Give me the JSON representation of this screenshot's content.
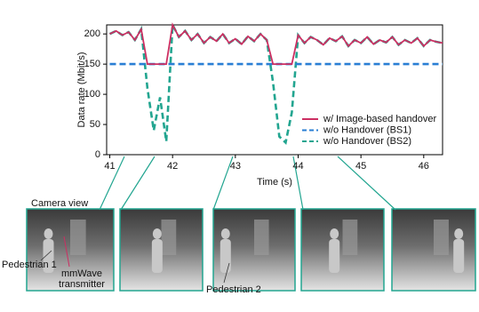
{
  "chart_data": {
    "type": "line",
    "x": [
      41.0,
      41.1,
      41.2,
      41.3,
      41.4,
      41.5,
      41.6,
      41.7,
      41.8,
      41.9,
      42.0,
      42.1,
      42.2,
      42.3,
      42.4,
      42.5,
      42.6,
      42.7,
      42.8,
      42.9,
      43.0,
      43.1,
      43.2,
      43.3,
      43.4,
      43.5,
      43.6,
      43.7,
      43.8,
      43.9,
      44.0,
      44.1,
      44.2,
      44.3,
      44.4,
      44.5,
      44.6,
      44.7,
      44.8,
      44.9,
      45.0,
      45.1,
      45.2,
      45.3,
      45.4,
      45.5,
      45.6,
      45.7,
      45.8,
      45.9,
      46.0,
      46.1,
      46.2,
      46.3
    ],
    "series": [
      {
        "name": "w/o Handover (BS2)",
        "color": "#22a590",
        "dashed": true,
        "values": [
          200,
          205,
          198,
          203,
          190,
          208,
          110,
          40,
          95,
          22,
          215,
          195,
          205,
          190,
          200,
          185,
          195,
          188,
          200,
          185,
          192,
          183,
          196,
          188,
          200,
          190,
          120,
          30,
          20,
          70,
          198,
          185,
          195,
          190,
          182,
          193,
          188,
          196,
          180,
          190,
          185,
          195,
          183,
          190,
          186,
          195,
          182,
          190,
          185,
          193,
          180,
          190,
          187,
          185
        ]
      },
      {
        "name": "w/o Handover (BS1)",
        "color": "#2a7fd4",
        "dashed": true,
        "values": [
          150,
          150,
          150,
          150,
          150,
          150,
          150,
          150,
          150,
          150,
          150,
          150,
          150,
          150,
          150,
          150,
          150,
          150,
          150,
          150,
          150,
          150,
          150,
          150,
          150,
          150,
          150,
          150,
          150,
          150,
          150,
          150,
          150,
          150,
          150,
          150,
          150,
          150,
          150,
          150,
          150,
          150,
          150,
          150,
          150,
          150,
          150,
          150,
          150,
          150,
          150,
          150,
          150,
          150
        ]
      },
      {
        "name": "w/ Image-based handover",
        "color": "#cc2f62",
        "dashed": false,
        "values": [
          200,
          205,
          198,
          203,
          190,
          208,
          150,
          150,
          150,
          150,
          215,
          195,
          205,
          190,
          200,
          185,
          195,
          188,
          200,
          185,
          192,
          183,
          196,
          188,
          200,
          190,
          150,
          150,
          150,
          150,
          198,
          185,
          195,
          190,
          182,
          193,
          188,
          196,
          180,
          190,
          185,
          195,
          183,
          190,
          186,
          195,
          182,
          190,
          185,
          193,
          180,
          190,
          187,
          185
        ]
      }
    ],
    "legend_order": [
      2,
      1,
      0
    ],
    "legend": "lower right",
    "x_label": "Time (s)",
    "y_label": "Data rate (Mbit/s)",
    "xlim": [
      40.95,
      46.3
    ],
    "ylim": [
      0,
      215
    ],
    "xticks": [
      41,
      42,
      43,
      44,
      45,
      46
    ],
    "yticks": [
      0,
      50,
      100,
      150,
      200
    ],
    "annotations": {
      "camera": "Camera view",
      "pedestrian1": "Pedestrian 1",
      "transmitter": "mmWave transmitter",
      "pedestrian2": "Pedestrian 2"
    }
  }
}
